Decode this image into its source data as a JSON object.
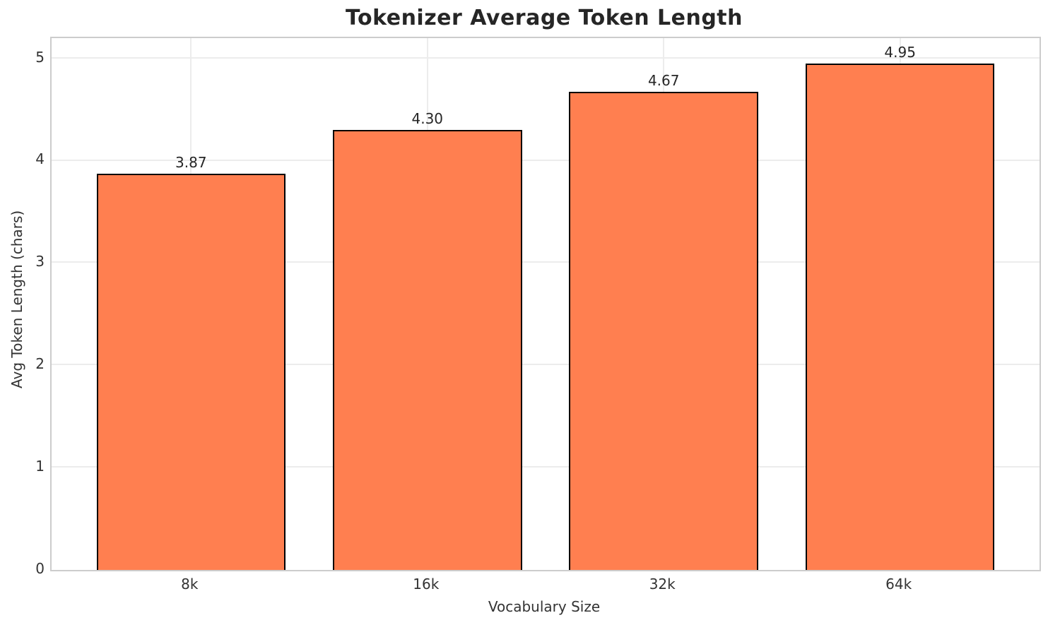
{
  "chart_data": {
    "type": "bar",
    "title": "Tokenizer Average Token Length",
    "xlabel": "Vocabulary Size",
    "ylabel": "Avg Token Length (chars)",
    "categories": [
      "8k",
      "16k",
      "32k",
      "64k"
    ],
    "values": [
      3.87,
      4.3,
      4.67,
      4.95
    ],
    "value_labels": [
      "3.87",
      "4.30",
      "4.67",
      "4.95"
    ],
    "yticks": [
      0,
      1,
      2,
      3,
      4,
      5
    ],
    "ytick_labels": [
      "0",
      "1",
      "2",
      "3",
      "4",
      "5"
    ],
    "ylim": [
      0,
      5.1975
    ],
    "bar_width_units": 0.8,
    "xlim": [
      -0.59,
      3.59
    ],
    "grid": true,
    "legend": null,
    "colors": {
      "bar_fill": "#FF7F50",
      "bar_edge": "#000000",
      "grid": "#ececec",
      "spine": "#cccccc",
      "title_text": "#262626",
      "tick_text": "#333333",
      "background": "#ffffff"
    }
  }
}
